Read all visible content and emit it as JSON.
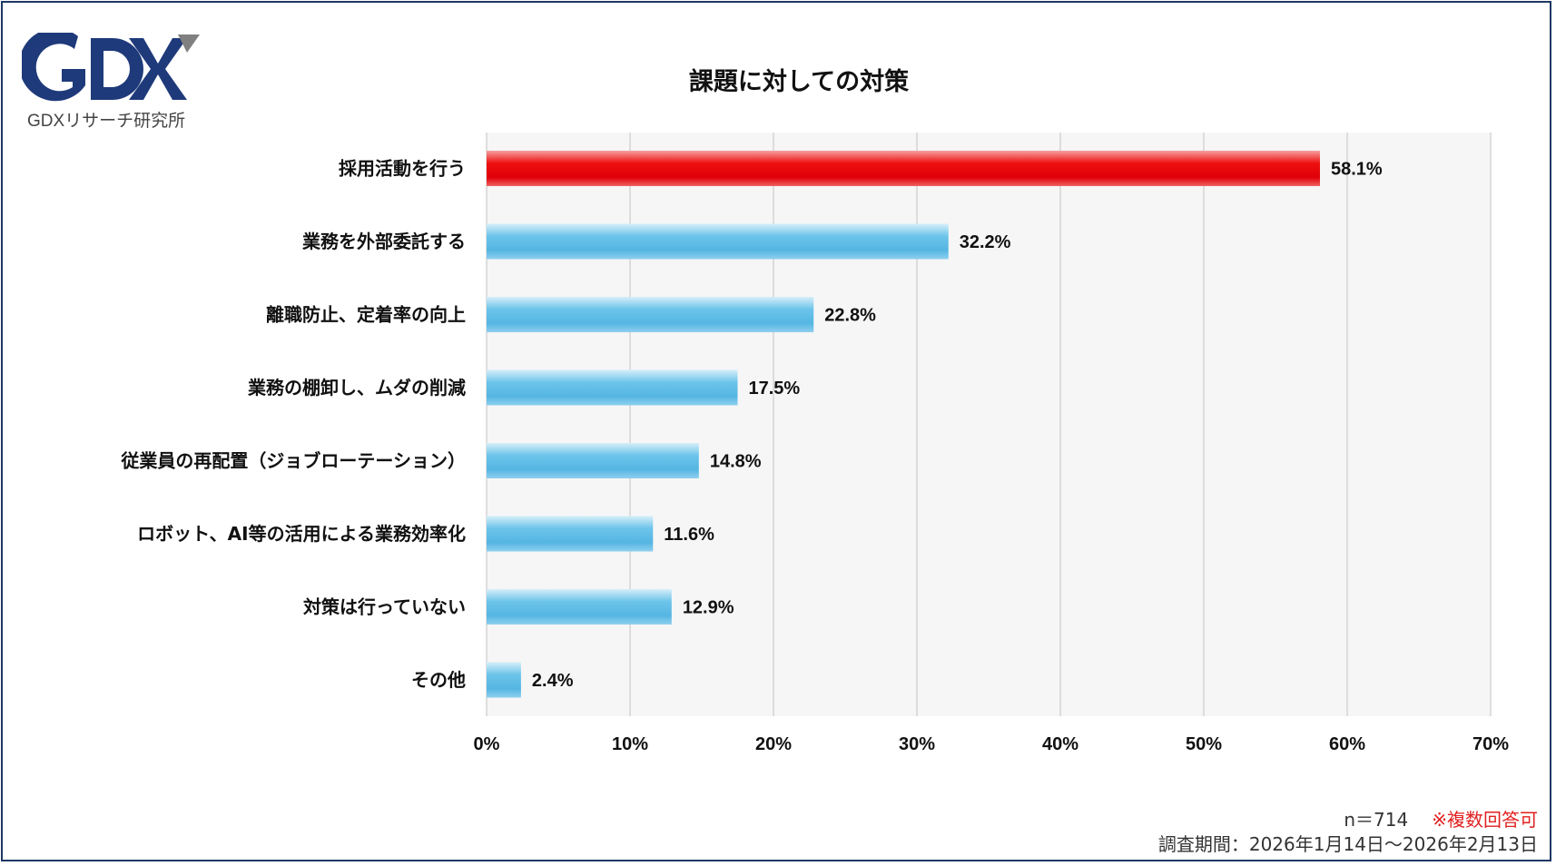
{
  "logo": {
    "mark": "GDX",
    "subtitle": "GDXリサーチ研究所"
  },
  "colors": {
    "highlight_bar": "#e8000b",
    "default_bar": "#5bbde6",
    "plot_background": "#f6f6f6",
    "gridline": "#cccccc",
    "logo_navy": "#1f3a7a",
    "logo_gray": "#808080",
    "note_red": "#e02020"
  },
  "chart_data": {
    "type": "bar",
    "orientation": "horizontal",
    "title": "課題に対しての対策",
    "categories": [
      "採用活動を行う",
      "業務を外部委託する",
      "離職防止、定着率の向上",
      "業務の棚卸し、ムダの削減",
      "従業員の再配置（ジョブローテーション）",
      "ロボット、AI等の活用による業務効率化",
      "対策は行っていない",
      "その他"
    ],
    "values": [
      58.1,
      32.2,
      22.8,
      17.5,
      14.8,
      11.6,
      12.9,
      2.4
    ],
    "value_labels": [
      "58.1%",
      "32.2%",
      "22.8%",
      "17.5%",
      "14.8%",
      "11.6%",
      "12.9%",
      "2.4%"
    ],
    "highlight_index": 0,
    "xlim": [
      0,
      70
    ],
    "xticks": [
      0,
      10,
      20,
      30,
      40,
      50,
      60,
      70
    ],
    "xtick_labels": [
      "0%",
      "10%",
      "20%",
      "30%",
      "40%",
      "50%",
      "60%",
      "70%"
    ],
    "grid": true
  },
  "footer": {
    "sample": "n＝714",
    "note": "※複数回答可",
    "period": "調査期間：2026年1月14日〜2026年2月13日"
  }
}
